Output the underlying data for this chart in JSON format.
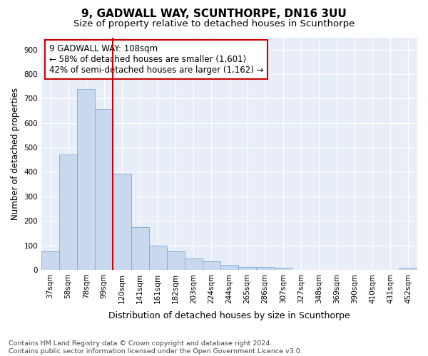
{
  "title": "9, GADWALL WAY, SCUNTHORPE, DN16 3UU",
  "subtitle": "Size of property relative to detached houses in Scunthorpe",
  "xlabel": "Distribution of detached houses by size in Scunthorpe",
  "ylabel": "Number of detached properties",
  "footer_line1": "Contains HM Land Registry data © Crown copyright and database right 2024.",
  "footer_line2": "Contains public sector information licensed under the Open Government Licence v3.0.",
  "annotation_line1": "9 GADWALL WAY: 108sqm",
  "annotation_line2": "← 58% of detached houses are smaller (1,601)",
  "annotation_line3": "42% of semi-detached houses are larger (1,162) →",
  "bar_labels": [
    "37sqm",
    "58sqm",
    "78sqm",
    "99sqm",
    "120sqm",
    "141sqm",
    "161sqm",
    "182sqm",
    "203sqm",
    "224sqm",
    "244sqm",
    "265sqm",
    "286sqm",
    "307sqm",
    "327sqm",
    "348sqm",
    "369sqm",
    "390sqm",
    "410sqm",
    "431sqm",
    "452sqm"
  ],
  "bar_values": [
    75,
    472,
    740,
    658,
    393,
    175,
    98,
    75,
    47,
    35,
    20,
    12,
    10,
    8,
    0,
    0,
    0,
    0,
    0,
    0,
    8
  ],
  "bar_color": "#c8d8ee",
  "bar_edgecolor": "#7aaad4",
  "property_line_x": 3.5,
  "property_line_color": "#cc0000",
  "ylim": [
    0,
    950
  ],
  "yticks": [
    0,
    100,
    200,
    300,
    400,
    500,
    600,
    700,
    800,
    900
  ],
  "fig_bg_color": "#ffffff",
  "plot_bg_color": "#e8eef8",
  "annotation_box_facecolor": "#ffffff",
  "annotation_box_edgecolor": "#cc0000",
  "title_fontsize": 11,
  "subtitle_fontsize": 9.5,
  "annotation_fontsize": 8.5,
  "tick_fontsize": 7.5,
  "xlabel_fontsize": 9,
  "ylabel_fontsize": 8.5,
  "footer_fontsize": 6.8
}
